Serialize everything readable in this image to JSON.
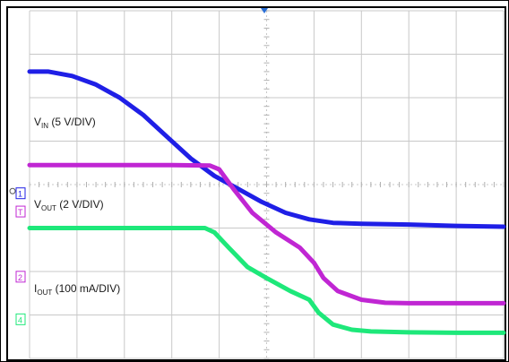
{
  "chart_data": {
    "type": "line",
    "title": "",
    "grid": true,
    "xlim": [
      0,
      10
    ],
    "ylim": [
      0,
      8
    ],
    "series": [
      {
        "key": "vin",
        "label_main": "V",
        "label_sub": "IN",
        "label_rest": " (5 V/DIV)",
        "color": "#1f1fe6",
        "x": [
          0,
          0.4,
          0.9,
          1.4,
          1.9,
          2.4,
          2.9,
          3.4,
          3.9,
          4.4,
          4.9,
          5.4,
          5.9,
          6.4,
          7.0,
          8.0,
          9.0,
          10.0
        ],
        "y": [
          6.6,
          6.6,
          6.5,
          6.3,
          6.0,
          5.6,
          5.1,
          4.6,
          4.2,
          3.9,
          3.6,
          3.35,
          3.2,
          3.12,
          3.1,
          3.08,
          3.05,
          3.03
        ]
      },
      {
        "key": "vout",
        "label_main": "V",
        "label_sub": "OUT",
        "label_rest": " (2 V/DIV)",
        "color": "#c026d3",
        "x": [
          0,
          1,
          2,
          3,
          3.8,
          4.0,
          4.3,
          4.7,
          5.2,
          5.7,
          6.0,
          6.2,
          6.5,
          7.0,
          7.5,
          8.0,
          9.0,
          10.0
        ],
        "y": [
          4.45,
          4.45,
          4.45,
          4.45,
          4.44,
          4.35,
          3.9,
          3.35,
          2.9,
          2.55,
          2.2,
          1.85,
          1.55,
          1.35,
          1.28,
          1.27,
          1.27,
          1.27
        ]
      },
      {
        "key": "iout",
        "label_main": "I",
        "label_sub": "OUT",
        "label_rest": " (100 mA/DIV)",
        "color": "#1ee87a",
        "x": [
          0,
          1,
          2,
          3,
          3.7,
          3.9,
          4.2,
          4.6,
          5.0,
          5.5,
          5.9,
          6.1,
          6.4,
          6.8,
          7.2,
          8.0,
          9.0,
          10.0
        ],
        "y": [
          3.0,
          3.0,
          3.0,
          3.0,
          3.0,
          2.9,
          2.55,
          2.1,
          1.85,
          1.55,
          1.35,
          1.05,
          0.78,
          0.66,
          0.62,
          0.6,
          0.59,
          0.59
        ]
      }
    ],
    "markers": [
      {
        "symbol": "1",
        "color": "#1f1fe6",
        "y": 3.8
      },
      {
        "symbol": "T",
        "color": "#c026d3",
        "y": 3.38
      },
      {
        "symbol": "2",
        "color": "#c026d3",
        "y": 1.88
      },
      {
        "symbol": "4",
        "color": "#1ee87a",
        "y": 0.9
      }
    ]
  }
}
